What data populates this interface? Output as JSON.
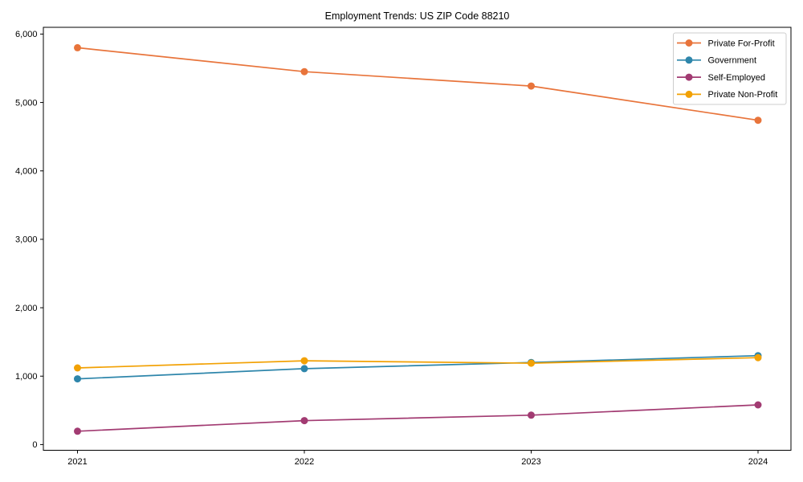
{
  "chart_data": {
    "type": "line",
    "title": "Employment Trends: US ZIP Code 88210",
    "xlabel": "",
    "ylabel": "",
    "x": [
      2021,
      2022,
      2023,
      2024
    ],
    "x_tick_labels": [
      "2021",
      "2022",
      "2023",
      "2024"
    ],
    "y_ticks": [
      0,
      1000,
      2000,
      3000,
      4000,
      5000,
      6000
    ],
    "y_tick_labels": [
      "0",
      "1,000",
      "2,000",
      "3,000",
      "4,000",
      "5,000",
      "6,000"
    ],
    "ylim": [
      -85,
      6100
    ],
    "grid": false,
    "legend_position": "upper-right",
    "marker": "o",
    "background_color": "#ffffff",
    "axis_color": "#000000",
    "legend_border_color": "#cccccc",
    "series": [
      {
        "name": "Private For-Profit",
        "slug": "private-for-profit",
        "color": "#E8743B",
        "values": [
          5800,
          5450,
          5240,
          4740
        ]
      },
      {
        "name": "Government",
        "slug": "government",
        "color": "#2E86AB",
        "values": [
          960,
          1110,
          1200,
          1300
        ]
      },
      {
        "name": "Self-Employed",
        "slug": "self-employed",
        "color": "#A23B72",
        "values": [
          195,
          350,
          430,
          580
        ]
      },
      {
        "name": "Private Non-Profit",
        "slug": "private-non-profit",
        "color": "#F2A104",
        "values": [
          1120,
          1225,
          1190,
          1270
        ]
      }
    ]
  }
}
